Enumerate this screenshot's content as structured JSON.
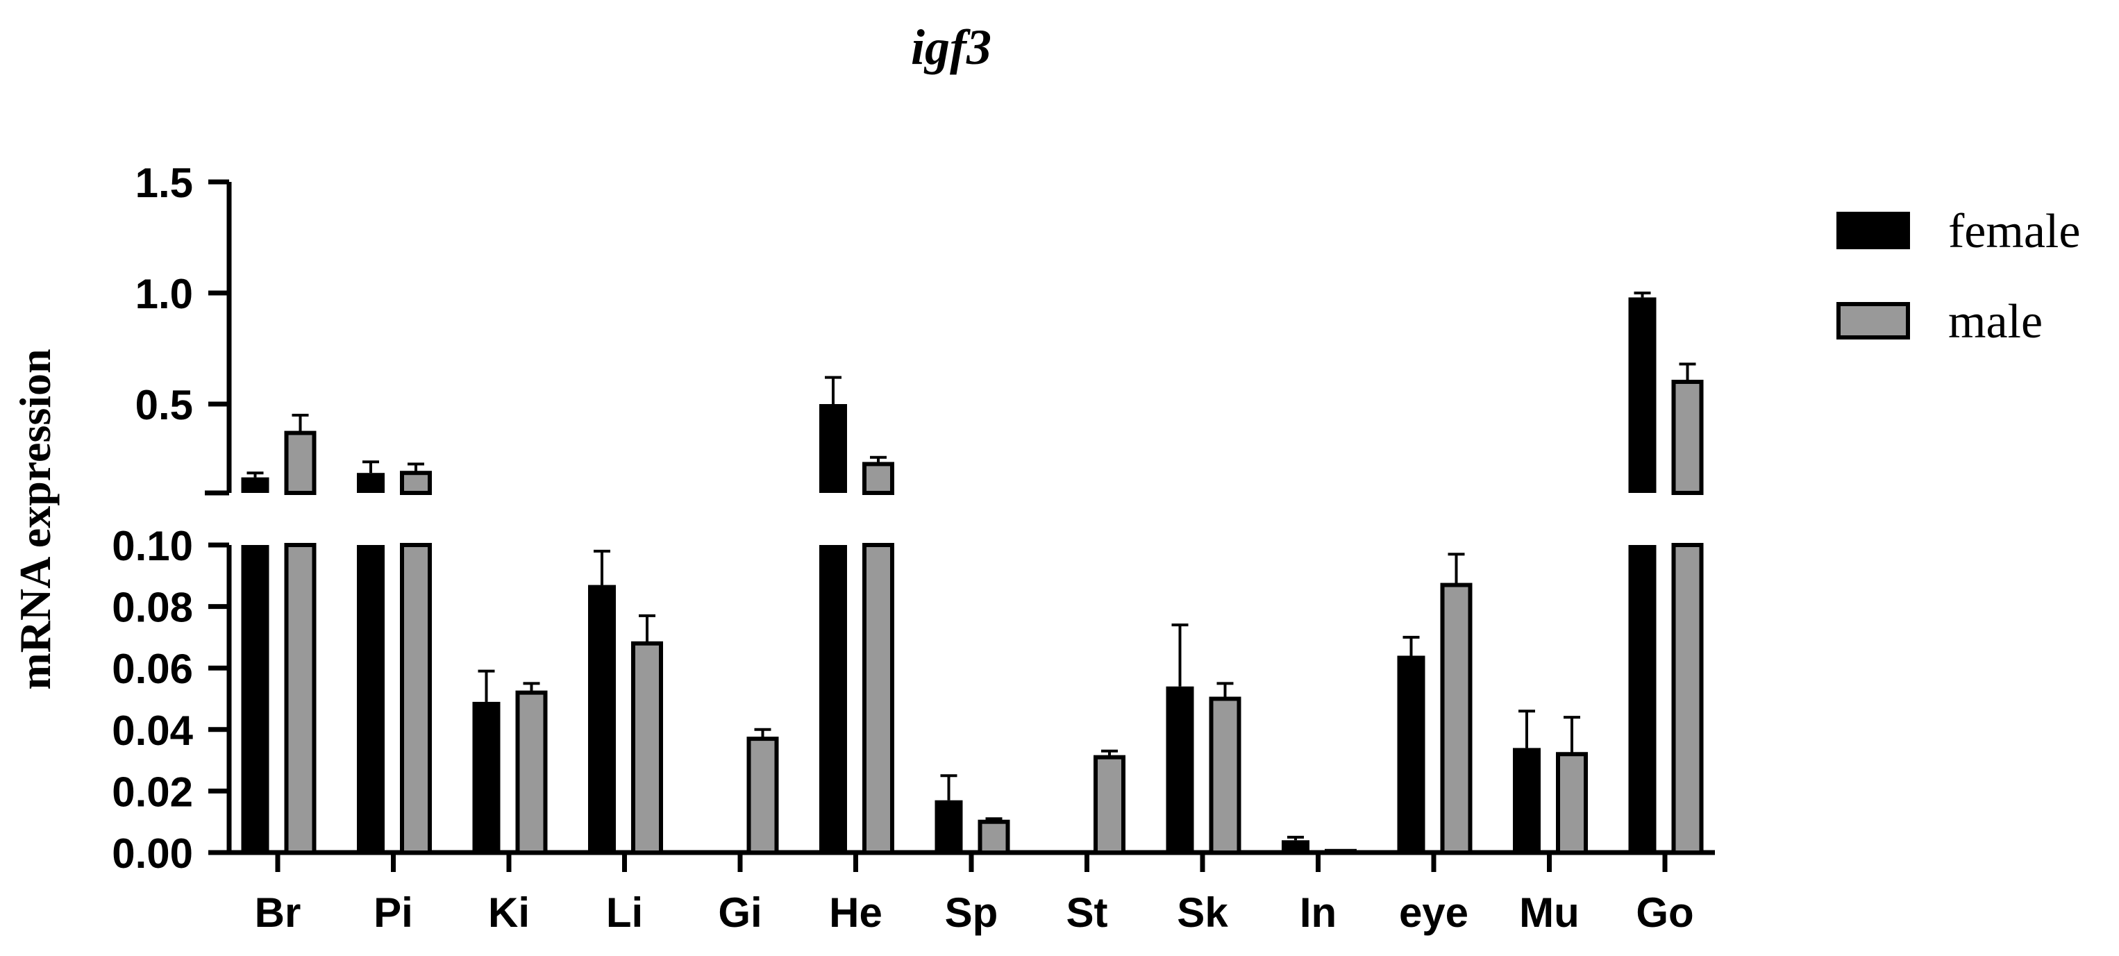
{
  "chart_data": {
    "type": "bar",
    "title": "igf3",
    "ylabel": "mRNA expression",
    "xlabel": "",
    "categories": [
      "Br",
      "Pi",
      "Ki",
      "Li",
      "Gi",
      "He",
      "Sp",
      "St",
      "Sk",
      "In",
      "eye",
      "Mu",
      "Go"
    ],
    "series": [
      {
        "name": "female",
        "color": "#000000",
        "values": [
          0.17,
          0.19,
          0.049,
          0.087,
          0.0,
          0.5,
          0.017,
          0.0,
          0.054,
          0.004,
          0.064,
          0.034,
          0.98
        ],
        "errors": [
          0.02,
          0.05,
          0.01,
          0.011,
          0.0,
          0.12,
          0.008,
          0.0,
          0.02,
          0.001,
          0.006,
          0.012,
          0.02
        ]
      },
      {
        "name": "male",
        "color": "#999999",
        "values": [
          0.37,
          0.19,
          0.052,
          0.068,
          0.037,
          0.23,
          0.01,
          0.031,
          0.05,
          0.0005,
          0.087,
          0.032,
          0.6
        ],
        "errors": [
          0.08,
          0.04,
          0.003,
          0.009,
          0.003,
          0.03,
          0.001,
          0.002,
          0.005,
          0.0,
          0.01,
          0.012,
          0.08
        ]
      }
    ],
    "y_axis_segments": [
      {
        "ylim": [
          0,
          0.1
        ],
        "ticks": [
          "0.00",
          "0.02",
          "0.04",
          "0.06",
          "0.08",
          "0.10"
        ]
      },
      {
        "ylim": [
          0.1,
          1.5
        ],
        "ticks": [
          "0.5",
          "1.0",
          "1.5"
        ]
      }
    ],
    "legend": {
      "position": "top-right",
      "entries": [
        "female",
        "male"
      ]
    },
    "error_bars": true,
    "grid": false
  }
}
